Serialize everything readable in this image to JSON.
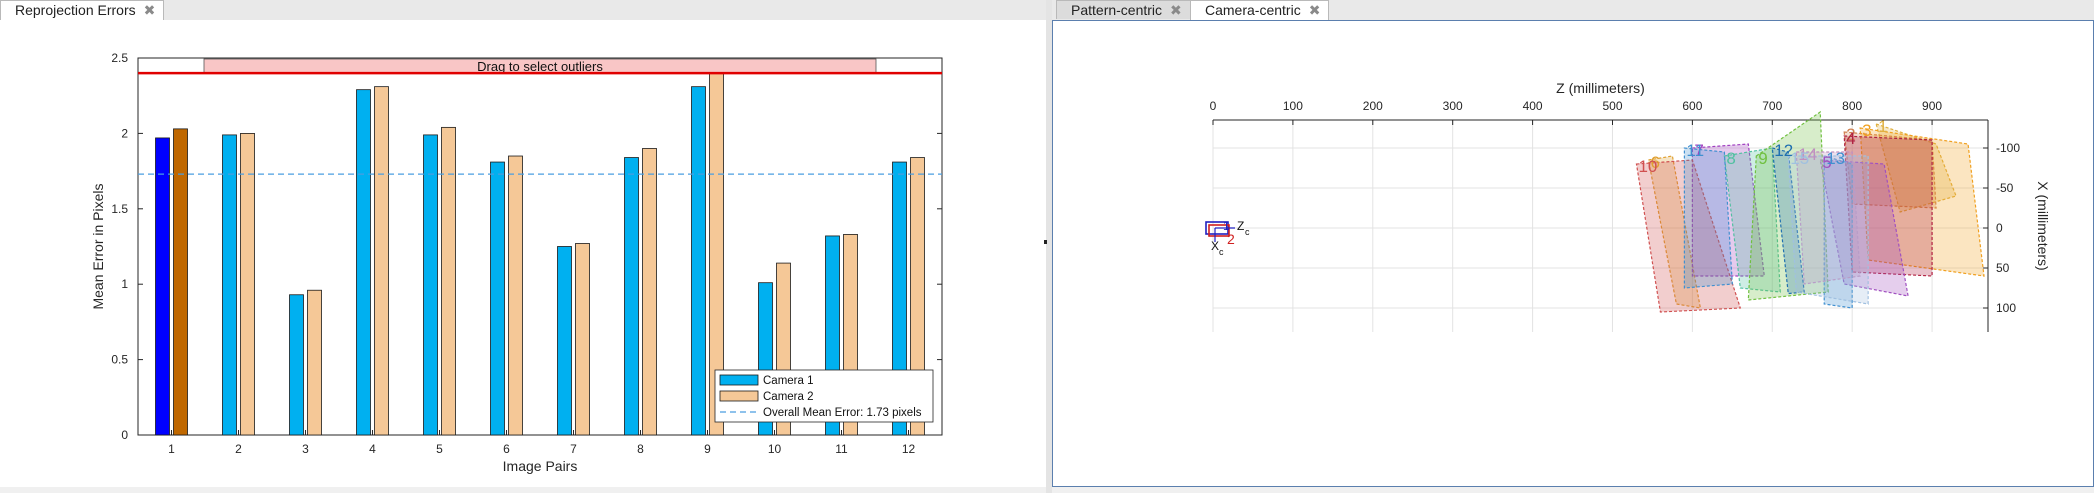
{
  "tabs_left": [
    {
      "label": "Reprojection Errors",
      "active": true
    }
  ],
  "tabs_right": [
    {
      "label": "Pattern-centric",
      "active": false
    },
    {
      "label": "Camera-centric",
      "active": true
    }
  ],
  "close_glyph": "✖",
  "colors": {
    "camera1": "#00b0f0",
    "camera2": "#f5c897",
    "camera1_selected": "#0000ff",
    "camera2_selected": "#c06800",
    "mean_line": "#4a9ee0",
    "outlier_line": "#e00000",
    "drag_box": "#f9c6c6"
  },
  "chart_data": [
    {
      "type": "bar",
      "xlabel": "Image Pairs",
      "ylabel": "Mean Error in Pixels",
      "ylim": [
        0,
        2.5
      ],
      "yticks": [
        "0",
        "0.5",
        "1",
        "1.5",
        "2",
        "2.5"
      ],
      "categories": [
        "1",
        "2",
        "3",
        "4",
        "5",
        "6",
        "7",
        "8",
        "9",
        "10",
        "11",
        "12"
      ],
      "series": [
        {
          "name": "Camera 1",
          "values": [
            1.97,
            1.99,
            0.93,
            2.29,
            1.99,
            1.81,
            1.25,
            1.84,
            2.31,
            1.01,
            1.32,
            1.81
          ]
        },
        {
          "name": "Camera 2",
          "values": [
            2.03,
            2.0,
            0.96,
            2.31,
            2.04,
            1.85,
            1.27,
            1.9,
            2.4,
            1.14,
            1.33,
            1.84
          ]
        }
      ],
      "selected_index": 0,
      "mean_value": 1.73,
      "mean_label": "Overall Mean Error: 1.73 pixels",
      "outlier_threshold": 2.4,
      "drag_label": "Drag to select outliers",
      "legend": "bottom-right",
      "grid": false
    },
    {
      "type": "scatter",
      "xlabel": "Z (millimeters)",
      "ylabel": "X (millimeters)",
      "xlim": [
        0,
        970
      ],
      "xticks": [
        "0",
        "100",
        "200",
        "300",
        "400",
        "500",
        "600",
        "700",
        "800",
        "900"
      ],
      "ylim": [
        130,
        -135
      ],
      "yticks": [
        "-100",
        "-50",
        "0",
        "50",
        "100"
      ],
      "grid": true,
      "camera_axis_labels": [
        "Z",
        "c",
        "X",
        "c"
      ],
      "camera_labels": [
        "1",
        "2"
      ],
      "patterns": [
        {
          "label": "1",
          "color": "#e0b040",
          "points": [
            [
              830,
              -130
            ],
            [
              905,
              -105
            ],
            [
              930,
              -40
            ],
            [
              860,
              -20
            ]
          ]
        },
        {
          "label": "2",
          "color": "#d08050",
          "points": [
            [
              790,
              -120
            ],
            [
              900,
              -110
            ],
            [
              905,
              -25
            ],
            [
              800,
              -30
            ]
          ]
        },
        {
          "label": "3",
          "color": "#f0a020",
          "points": [
            [
              810,
              -125
            ],
            [
              945,
              -105
            ],
            [
              965,
              60
            ],
            [
              820,
              40
            ]
          ]
        },
        {
          "label": "4",
          "color": "#b02040",
          "points": [
            [
              790,
              -115
            ],
            [
              900,
              -110
            ],
            [
              900,
              60
            ],
            [
              800,
              55
            ]
          ]
        },
        {
          "label": "5",
          "color": "#a050c0",
          "points": [
            [
              760,
              -85
            ],
            [
              840,
              -80
            ],
            [
              870,
              85
            ],
            [
              790,
              70
            ]
          ]
        },
        {
          "label": "6",
          "color": "#e0a030",
          "points": [
            [
              545,
              -85
            ],
            [
              575,
              -90
            ],
            [
              610,
              100
            ],
            [
              580,
              95
            ]
          ]
        },
        {
          "label": "7",
          "color": "#a040c0",
          "points": [
            [
              600,
              -100
            ],
            [
              670,
              -105
            ],
            [
              690,
              60
            ],
            [
              600,
              60
            ]
          ]
        },
        {
          "label": "8",
          "color": "#50c0a0",
          "points": [
            [
              640,
              -90
            ],
            [
              700,
              -100
            ],
            [
              710,
              80
            ],
            [
              660,
              75
            ]
          ]
        },
        {
          "label": "9",
          "color": "#70c040",
          "points": [
            [
              680,
              -90
            ],
            [
              760,
              -145
            ],
            [
              770,
              80
            ],
            [
              670,
              90
            ]
          ]
        },
        {
          "label": "10",
          "color": "#d05050",
          "points": [
            [
              530,
              -80
            ],
            [
              600,
              -85
            ],
            [
              660,
              100
            ],
            [
              560,
              105
            ]
          ]
        },
        {
          "label": "11",
          "color": "#4090d0",
          "points": [
            [
              590,
              -100
            ],
            [
              640,
              -95
            ],
            [
              650,
              70
            ],
            [
              590,
              75
            ]
          ]
        },
        {
          "label": "12",
          "color": "#2070b0",
          "points": [
            [
              700,
              -100
            ],
            [
              720,
              -95
            ],
            [
              740,
              80
            ],
            [
              720,
              82
            ]
          ]
        },
        {
          "label": "13",
          "color": "#4090d0",
          "points": [
            [
              765,
              -90
            ],
            [
              800,
              -80
            ],
            [
              800,
              100
            ],
            [
              765,
              95
            ]
          ]
        },
        {
          "label": "14",
          "color": "#c090c0",
          "points": [
            [
              730,
              -95
            ],
            [
              800,
              -95
            ],
            [
              810,
              60
            ],
            [
              740,
              70
            ]
          ]
        },
        {
          "label": "15",
          "color": "#a0c0e0",
          "points": [
            [
              720,
              -90
            ],
            [
              820,
              -90
            ],
            [
              820,
              95
            ],
            [
              730,
              80
            ]
          ]
        }
      ]
    }
  ]
}
